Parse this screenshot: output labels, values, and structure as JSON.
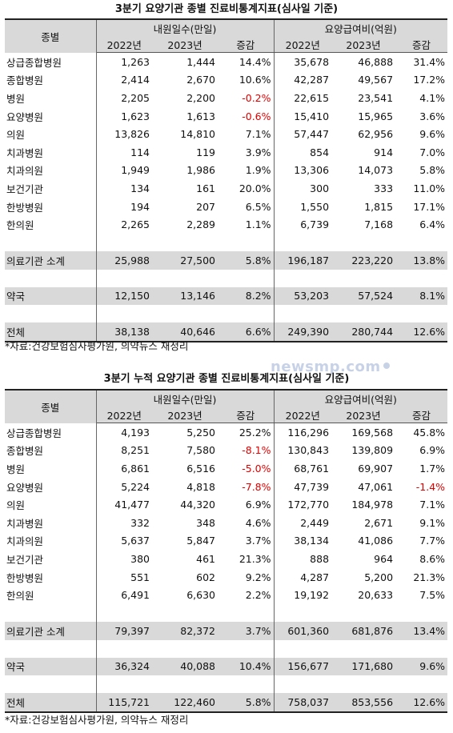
{
  "tables": [
    {
      "title": "3분기 요양기관 종별 진료비통계지표(심사일 기준)",
      "headers": {
        "category": "종별",
        "group1": "내원일수(만일)",
        "group2": "요양급여비(억원)",
        "years": [
          "2022년",
          "2023년",
          "증감",
          "2022년",
          "2023년",
          "증감"
        ]
      },
      "rows": [
        {
          "name": "상급종합병원",
          "v": [
            "1,263",
            "1,444",
            "14.4%",
            "35,678",
            "46,888",
            "31.4%"
          ]
        },
        {
          "name": "종합병원",
          "v": [
            "2,414",
            "2,670",
            "10.6%",
            "42,287",
            "49,567",
            "17.2%"
          ]
        },
        {
          "name": "병원",
          "v": [
            "2,205",
            "2,200",
            "-0.2%",
            "22,615",
            "23,541",
            "4.1%"
          ]
        },
        {
          "name": "요양병원",
          "v": [
            "1,623",
            "1,613",
            "-0.6%",
            "15,410",
            "15,965",
            "3.6%"
          ]
        },
        {
          "name": "의원",
          "v": [
            "13,826",
            "14,810",
            "7.1%",
            "57,447",
            "62,956",
            "9.6%"
          ]
        },
        {
          "name": "치과병원",
          "v": [
            "114",
            "119",
            "3.9%",
            "854",
            "914",
            "7.0%"
          ]
        },
        {
          "name": "치과의원",
          "v": [
            "1,949",
            "1,986",
            "1.9%",
            "13,306",
            "14,073",
            "5.8%"
          ]
        },
        {
          "name": "보건기관",
          "v": [
            "134",
            "161",
            "20.0%",
            "300",
            "333",
            "11.0%"
          ]
        },
        {
          "name": "한방병원",
          "v": [
            "194",
            "207",
            "6.5%",
            "1,550",
            "1,815",
            "17.1%"
          ]
        },
        {
          "name": "한의원",
          "v": [
            "2,265",
            "2,289",
            "1.1%",
            "6,739",
            "7,168",
            "6.4%"
          ]
        }
      ],
      "subtotal": {
        "name": "의료기관 소계",
        "v": [
          "25,988",
          "27,500",
          "5.8%",
          "196,187",
          "223,220",
          "13.8%"
        ]
      },
      "pharmacy": {
        "name": "약국",
        "v": [
          "12,150",
          "13,146",
          "8.2%",
          "53,203",
          "57,524",
          "8.1%"
        ]
      },
      "total": {
        "name": "전체",
        "v": [
          "38,138",
          "40,646",
          "6.6%",
          "249,390",
          "280,744",
          "12.6%"
        ]
      },
      "note": "*자료:건강보험심사평가원, 의약뉴스 재정리"
    },
    {
      "title": "3분기 누적 요양기관 종별 진료비통계지표(심사일 기준)",
      "headers": {
        "category": "종별",
        "group1": "내원일수(만일)",
        "group2": "요양급여비(억원)",
        "years": [
          "2022년",
          "2023년",
          "증감",
          "2022년",
          "2023년",
          "증감"
        ]
      },
      "rows": [
        {
          "name": "상급종합병원",
          "v": [
            "4,193",
            "5,250",
            "25.2%",
            "116,296",
            "169,568",
            "45.8%"
          ]
        },
        {
          "name": "종합병원",
          "v": [
            "8,251",
            "7,580",
            "-8.1%",
            "130,843",
            "139,809",
            "6.9%"
          ]
        },
        {
          "name": "병원",
          "v": [
            "6,861",
            "6,516",
            "-5.0%",
            "68,761",
            "69,907",
            "1.7%"
          ]
        },
        {
          "name": "요양병원",
          "v": [
            "5,224",
            "4,818",
            "-7.8%",
            "47,739",
            "47,061",
            "-1.4%"
          ]
        },
        {
          "name": "의원",
          "v": [
            "41,477",
            "44,320",
            "6.9%",
            "172,770",
            "184,978",
            "7.1%"
          ]
        },
        {
          "name": "치과병원",
          "v": [
            "332",
            "348",
            "4.6%",
            "2,449",
            "2,671",
            "9.1%"
          ]
        },
        {
          "name": "치과의원",
          "v": [
            "5,637",
            "5,847",
            "3.7%",
            "38,134",
            "41,086",
            "7.7%"
          ]
        },
        {
          "name": "보건기관",
          "v": [
            "380",
            "461",
            "21.3%",
            "888",
            "964",
            "8.6%"
          ]
        },
        {
          "name": "한방병원",
          "v": [
            "551",
            "602",
            "9.2%",
            "4,287",
            "5,200",
            "21.3%"
          ]
        },
        {
          "name": "한의원",
          "v": [
            "6,491",
            "6,630",
            "2.2%",
            "19,192",
            "20,633",
            "7.5%"
          ]
        }
      ],
      "subtotal": {
        "name": "의료기관 소계",
        "v": [
          "79,397",
          "82,372",
          "3.7%",
          "601,360",
          "681,876",
          "13.4%"
        ]
      },
      "pharmacy": {
        "name": "약국",
        "v": [
          "36,324",
          "40,088",
          "10.4%",
          "156,677",
          "171,680",
          "9.6%"
        ]
      },
      "total": {
        "name": "전체",
        "v": [
          "115,721",
          "122,460",
          "5.8%",
          "758,037",
          "853,556",
          "12.6%"
        ]
      },
      "note": "*자료:건강보험심사평가원, 의약뉴스 재정리"
    }
  ],
  "watermark": "newsmp.com",
  "colors": {
    "header_bg": "#d9d9d9",
    "negative": "#e00000",
    "watermark": "#c8d2e6"
  }
}
